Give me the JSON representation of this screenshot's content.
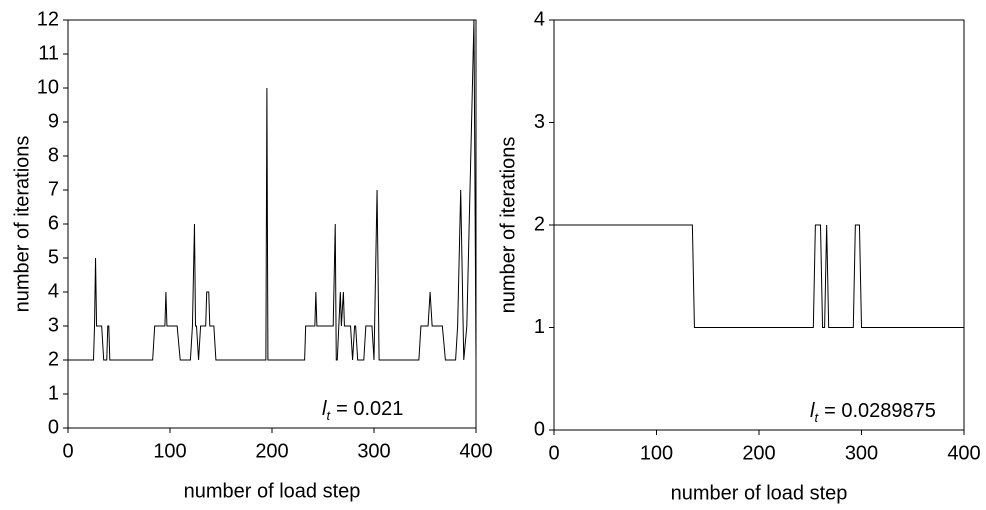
{
  "chart_data": [
    {
      "type": "line",
      "x_label": "number of load step",
      "y_label": "number of iterations",
      "annotation": {
        "symbol": "l",
        "subscript": "t",
        "text": "= 0.021"
      },
      "color": "#000000",
      "x": [
        0,
        0,
        25,
        26,
        27,
        28,
        33,
        35,
        38,
        39,
        40,
        41,
        83,
        85,
        95,
        96,
        97,
        107,
        110,
        120,
        122,
        124,
        125,
        126,
        128,
        130,
        135,
        136,
        138,
        139,
        143,
        145,
        194,
        195,
        196,
        232,
        233,
        242,
        243,
        244,
        260,
        262,
        263,
        264,
        267,
        268,
        270,
        271,
        277,
        279,
        281,
        282,
        284,
        290,
        292,
        298,
        300,
        303,
        305,
        344,
        346,
        353,
        355,
        357,
        367,
        370,
        380,
        382,
        385,
        388,
        391,
        398,
        400
      ],
      "values": [
        0,
        2,
        2,
        3,
        5,
        3,
        3,
        2,
        2,
        3,
        3,
        2,
        2,
        3,
        3,
        4,
        3,
        3,
        2,
        2,
        3,
        6,
        3,
        3,
        2,
        3,
        3,
        4,
        4,
        3,
        3,
        2,
        2,
        10,
        2,
        2,
        3,
        3,
        4,
        3,
        3,
        6,
        2,
        2,
        4,
        3,
        4,
        3,
        3,
        2,
        3,
        3,
        2,
        2,
        3,
        3,
        2,
        7,
        2,
        2,
        3,
        3,
        4,
        3,
        3,
        2,
        2,
        3,
        7,
        2,
        3,
        12,
        2
      ],
      "xlim": [
        0,
        400
      ],
      "xticks": [
        0,
        100,
        200,
        300,
        400
      ],
      "ylim": [
        0,
        12
      ],
      "yticks": [
        0,
        1,
        2,
        3,
        4,
        5,
        6,
        7,
        8,
        9,
        10,
        11,
        12
      ]
    },
    {
      "type": "line",
      "x_label": "number of load step",
      "y_label": "number of iterations",
      "annotation": {
        "symbol": "l",
        "subscript": "t",
        "text": "= 0.0289875"
      },
      "color": "#000000",
      "x": [
        0,
        135,
        137,
        253,
        255,
        260,
        262,
        264,
        266,
        268,
        292,
        294,
        298,
        300,
        400
      ],
      "values": [
        2,
        2,
        1,
        1,
        2,
        2,
        1,
        1,
        2,
        1,
        1,
        2,
        2,
        1,
        1
      ],
      "xlim": [
        0,
        400
      ],
      "xticks": [
        0,
        100,
        200,
        300,
        400
      ],
      "ylim": [
        0,
        4
      ],
      "yticks": [
        0,
        1,
        2,
        3,
        4
      ]
    }
  ]
}
